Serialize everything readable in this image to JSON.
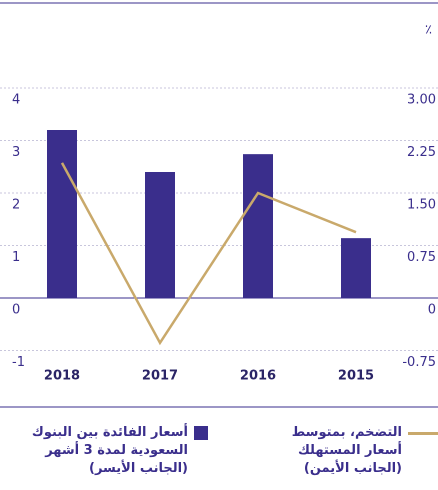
{
  "chart_data": {
    "type": "bar",
    "categories": [
      "2018",
      "2017",
      "2016",
      "2015"
    ],
    "ylabel": "٪",
    "series": [
      {
        "name": "أسعار الفائدة بين البنوك السعودية لمدة 3 أشهر (الجانب الأيسر)",
        "type": "bar",
        "color": "#3a2e8c",
        "values": [
          3.2,
          2.4,
          2.74,
          1.14
        ]
      },
      {
        "name": "التضخم، بمتوسط أسعار المستهلك (الجانب الأيمن)",
        "type": "line",
        "axis": "y2",
        "color": "#c9a96b",
        "values": [
          1.93,
          -0.64,
          1.5,
          0.94
        ]
      }
    ],
    "ylim": [
      -1,
      4
    ],
    "yticks": [
      -1,
      0,
      1,
      2,
      3,
      4
    ],
    "y2lim": [
      -0.75,
      3
    ],
    "y2ticks": [
      -0.75,
      0,
      0.75,
      {
        "value": 1.5,
        "label": "1.50"
      },
      2.25,
      {
        "value": 3,
        "label": "3.00"
      }
    ],
    "grid": true
  }
}
